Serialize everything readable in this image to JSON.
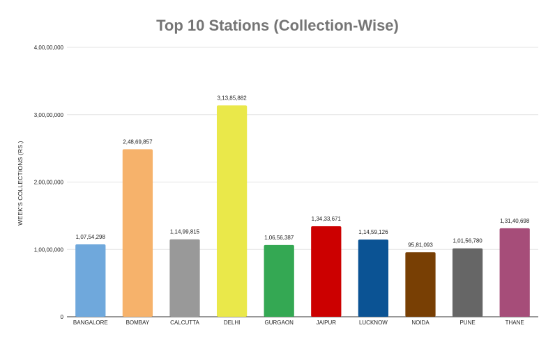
{
  "chart_data": {
    "type": "bar",
    "title": "Top 10 Stations (Collection-Wise)",
    "xlabel": "",
    "ylabel": "WEEK'S COLLECTIONS (RS.)",
    "ylim": [
      0,
      40000000
    ],
    "yticks": [
      0,
      10000000,
      20000000,
      30000000,
      40000000
    ],
    "ytick_labels": [
      "0",
      "1,00,00,000",
      "2,00,00,000",
      "3,00,00,000",
      "4,00,00,000"
    ],
    "grid": true,
    "legend": "none",
    "categories": [
      "BANGALORE",
      "BOMBAY",
      "CALCUTTA",
      "DELHI",
      "GURGAON",
      "JAIPUR",
      "LUCKNOW",
      "NOIDA",
      "PUNE",
      "THANE"
    ],
    "values": [
      10754298,
      24869857,
      11499815,
      31385882,
      10656387,
      13433671,
      11459126,
      9581093,
      10156780,
      13140698
    ],
    "value_labels": [
      "1,07,54,298",
      "2,48,69,857",
      "1,14,99,815",
      "3,13,85,882",
      "1,06,56,387",
      "1,34,33,671",
      "1,14,59,126",
      "95,81,093",
      "1,01,56,780",
      "1,31,40,698"
    ],
    "colors": [
      "#6fa8dc",
      "#f6b26b",
      "#999999",
      "#eae84a",
      "#34a853",
      "#cc0000",
      "#0b5394",
      "#783f04",
      "#666666",
      "#a64d79"
    ]
  }
}
